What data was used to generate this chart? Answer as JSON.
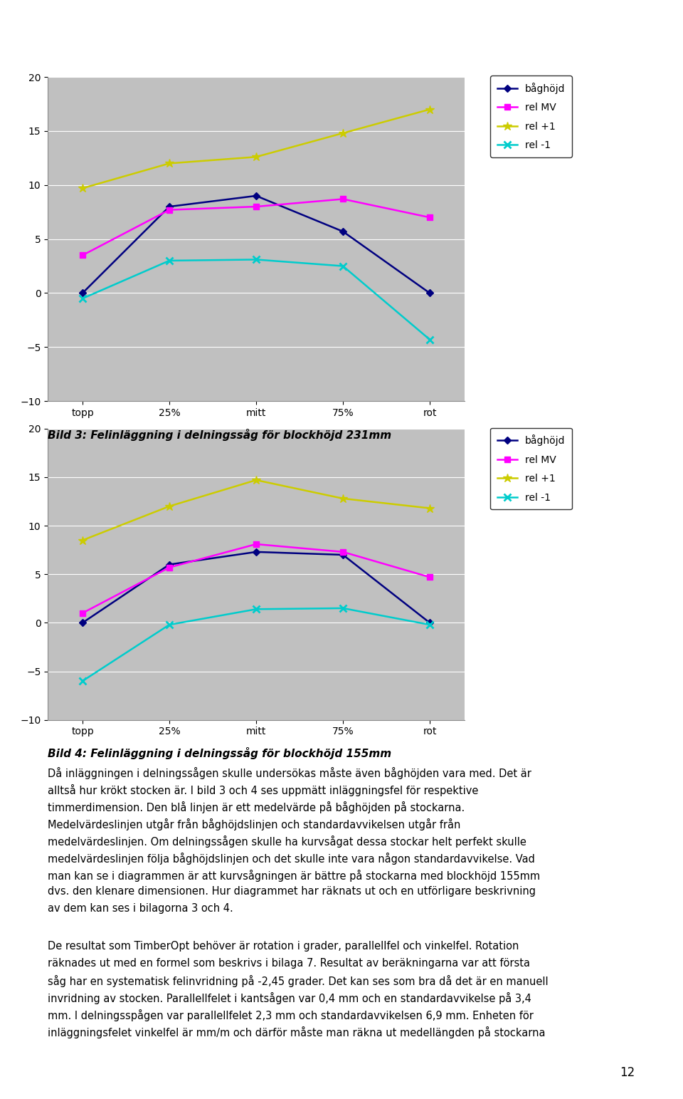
{
  "categories": [
    "topp",
    "25%",
    "mitt",
    "75%",
    "rot"
  ],
  "chart1": {
    "title": "Bild 3: Felinläggning i delningssåg för blockhöjd 231mm",
    "baghojd": [
      0,
      8,
      9,
      5.7,
      0
    ],
    "rel_mv": [
      3.5,
      7.7,
      8.0,
      8.7,
      7.0
    ],
    "rel_plus1": [
      9.7,
      12.0,
      12.6,
      14.8,
      17.0
    ],
    "rel_minus1": [
      -0.5,
      3.0,
      3.1,
      2.5,
      -4.3
    ]
  },
  "chart2": {
    "title": "Bild 4: Felinläggning i delningssåg för blockhöjd 155mm",
    "baghojd": [
      0,
      6.0,
      7.3,
      7.0,
      0
    ],
    "rel_mv": [
      1.0,
      5.7,
      8.1,
      7.3,
      4.7
    ],
    "rel_plus1": [
      8.5,
      12.0,
      14.7,
      12.8,
      11.8
    ],
    "rel_minus1": [
      -6.0,
      -0.2,
      1.4,
      1.5,
      -0.2
    ]
  },
  "ylim": [
    -10,
    20
  ],
  "yticks": [
    -10,
    -5,
    0,
    5,
    10,
    15,
    20
  ],
  "colors": {
    "baghojd": "#000080",
    "rel_mv": "#FF00FF",
    "rel_plus1": "#CCCC00",
    "rel_minus1": "#00CCCC"
  },
  "legend_labels": [
    "båghöjd",
    "rel MV",
    "rel +1",
    "rel -1"
  ],
  "plot_bg": "#C0C0C0",
  "fig_bg": "#FFFFFF",
  "body_text_para1": [
    "Då inläggningen i delningssågen skulle undersökas måste även båghöjden vara med. Det är alltsså hur krökt stocken är. I bild 3 och 4 ses uppmätt inläggningsfel för respektive timmerdimension. Den blå linjen är ett medel värde på båghöjden på stockarna. Medel värdeslinjen utgår från båghöjdslinjen och standardavvikelsen utgår från medel värdeslinjen. Om delningssågen skulle ha kurvsågat dessa stockar helt perfekt skulle medel värdeslinjen följa båghöjdslinjen och det skulle inte vara någon standardavvikelse. Vad man kan se i diagrammen är att kurvsågningen är bättre på stockarna med blockhöjd 155mm dvs. den klenare dimensionen. Hur diagrammet har räknats ut och en utförligare beskrivning av dem kan ses i bilagorna 3 och 4."
  ],
  "body_text_para2": [
    "De resultat som TimberOpt behöver är rotation i grader, parallellfel och vinkelfel. Rotation räknades ut med en formel som beskrivs i bilaga 7. Resultat av beräkningarna var att första såg har en systematisk felinvridning på -2,45 grader. Det kan ses som bra då det är en manuell invridning av stocken. Parallellfelet i kantsågen var 0,4 mm och en standardavvikelse på 3,4 mm. I delningspågen var parallellfelet 2,3 mm och standardavvikelsen 6,9 mm. Enheten för inläggningsfelet vinkelfel är mm/m och därför måste man räkna ut medellängden på stockarna"
  ],
  "page_number": "12"
}
